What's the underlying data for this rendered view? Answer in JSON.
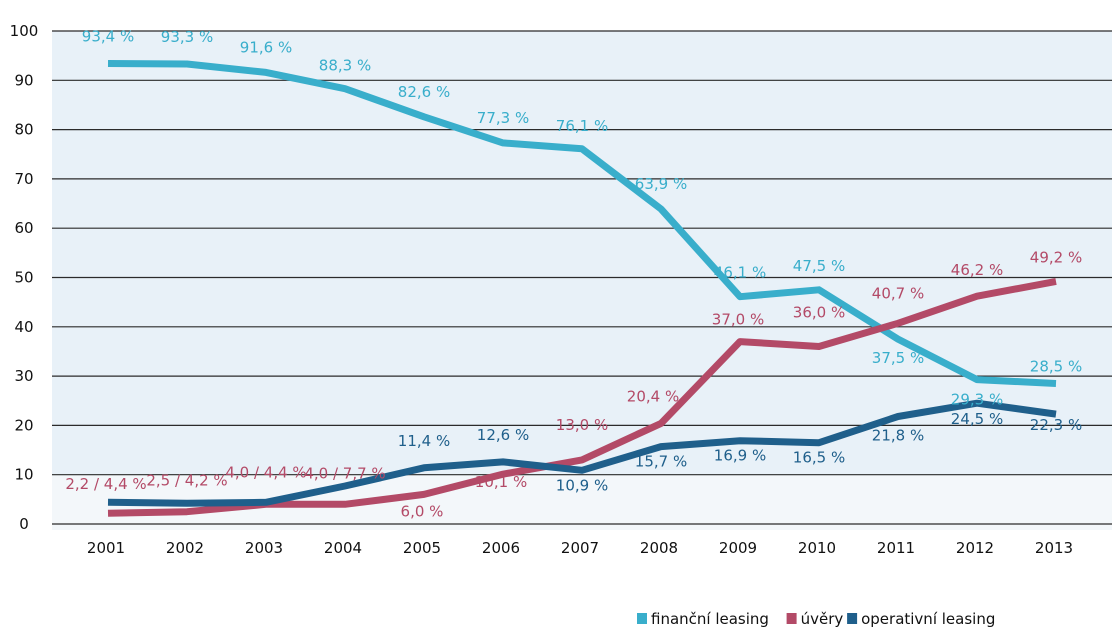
{
  "chart_data": {
    "type": "line",
    "x": [
      "2001",
      "2002",
      "2003",
      "2004",
      "2005",
      "2006",
      "2007",
      "2008",
      "2009",
      "2010",
      "2011",
      "2012",
      "2013"
    ],
    "ylim": [
      0,
      100
    ],
    "yticks": [
      0,
      10,
      20,
      30,
      40,
      50,
      60,
      70,
      80,
      90,
      100
    ],
    "grid": "horizontal",
    "legend_position": "bottom-right",
    "series": [
      {
        "name": "finanční leasing",
        "color": "#39AECB",
        "values": [
          93.4,
          93.3,
          91.6,
          88.3,
          82.6,
          77.3,
          76.1,
          63.9,
          46.1,
          47.5,
          37.5,
          29.3,
          28.5
        ]
      },
      {
        "name": "úvěry",
        "color": "#B34A67",
        "values": [
          2.2,
          2.5,
          4.0,
          4.0,
          6.0,
          10.1,
          13.0,
          20.4,
          37.0,
          36.0,
          40.7,
          46.2,
          49.2
        ]
      },
      {
        "name": "operativní leasing",
        "color": "#1F5F8B",
        "values": [
          4.4,
          4.2,
          4.4,
          7.7,
          11.4,
          12.6,
          10.9,
          15.7,
          16.9,
          16.5,
          21.8,
          24.5,
          22.3
        ]
      }
    ],
    "annotations": [
      {
        "text": "93,4 %",
        "series": 0,
        "x": "2001",
        "color": "#39AECB"
      },
      {
        "text": "93,3 %",
        "series": 0,
        "x": "2002",
        "color": "#39AECB"
      },
      {
        "text": "91,6 %",
        "series": 0,
        "x": "2003",
        "color": "#39AECB"
      },
      {
        "text": "88,3 %",
        "series": 0,
        "x": "2004",
        "color": "#39AECB"
      },
      {
        "text": "82,6 %",
        "series": 0,
        "x": "2005",
        "color": "#39AECB"
      },
      {
        "text": "77,3 %",
        "series": 0,
        "x": "2006",
        "color": "#39AECB"
      },
      {
        "text": "76,1 %",
        "series": 0,
        "x": "2007",
        "color": "#39AECB"
      },
      {
        "text": "63,9 %",
        "series": 0,
        "x": "2008",
        "color": "#39AECB"
      },
      {
        "text": "46,1 %",
        "series": 0,
        "x": "2009",
        "color": "#39AECB"
      },
      {
        "text": "47,5 %",
        "series": 0,
        "x": "2010",
        "color": "#39AECB"
      },
      {
        "text": "37,5 %",
        "series": 0,
        "x": "2011",
        "color": "#39AECB"
      },
      {
        "text": "29,3 %",
        "series": 0,
        "x": "2012",
        "color": "#39AECB"
      },
      {
        "text": "28,5 %",
        "series": 0,
        "x": "2013",
        "color": "#39AECB"
      },
      {
        "text": "2,2 / 4,4 %",
        "series": 1,
        "x": "2001",
        "color": "#B34A67"
      },
      {
        "text": "2,5 / 4,2 %",
        "series": 1,
        "x": "2002",
        "color": "#B34A67"
      },
      {
        "text": "4,0 / 4,4 %",
        "series": 1,
        "x": "2003",
        "color": "#B34A67"
      },
      {
        "text": "4,0 / 7,7 %",
        "series": 1,
        "x": "2004",
        "color": "#B34A67"
      },
      {
        "text": "6,0 %",
        "series": 1,
        "x": "2005",
        "color": "#B34A67"
      },
      {
        "text": "10,1 %",
        "series": 1,
        "x": "2006",
        "color": "#B34A67"
      },
      {
        "text": "13,0 %",
        "series": 1,
        "x": "2007",
        "color": "#B34A67"
      },
      {
        "text": "20,4 %",
        "series": 1,
        "x": "2008",
        "color": "#B34A67"
      },
      {
        "text": "37,0 %",
        "series": 1,
        "x": "2009",
        "color": "#B34A67"
      },
      {
        "text": "36,0 %",
        "series": 1,
        "x": "2010",
        "color": "#B34A67"
      },
      {
        "text": "40,7 %",
        "series": 1,
        "x": "2011",
        "color": "#B34A67"
      },
      {
        "text": "46,2 %",
        "series": 1,
        "x": "2012",
        "color": "#B34A67"
      },
      {
        "text": "49,2 %",
        "series": 1,
        "x": "2013",
        "color": "#B34A67"
      },
      {
        "text": "11,4 %",
        "series": 2,
        "x": "2005",
        "color": "#1F5F8B"
      },
      {
        "text": "12,6 %",
        "series": 2,
        "x": "2006",
        "color": "#1F5F8B"
      },
      {
        "text": "10,9 %",
        "series": 2,
        "x": "2007",
        "color": "#1F5F8B"
      },
      {
        "text": "15,7 %",
        "series": 2,
        "x": "2008",
        "color": "#1F5F8B"
      },
      {
        "text": "16,9 %",
        "series": 2,
        "x": "2009",
        "color": "#1F5F8B"
      },
      {
        "text": "16,5 %",
        "series": 2,
        "x": "2010",
        "color": "#1F5F8B"
      },
      {
        "text": "21,8 %",
        "series": 2,
        "x": "2011",
        "color": "#1F5F8B"
      },
      {
        "text": "24,5 %",
        "series": 2,
        "x": "2012",
        "color": "#1F5F8B"
      },
      {
        "text": "22,3 %",
        "series": 2,
        "x": "2013",
        "color": "#1F5F8B"
      }
    ]
  }
}
